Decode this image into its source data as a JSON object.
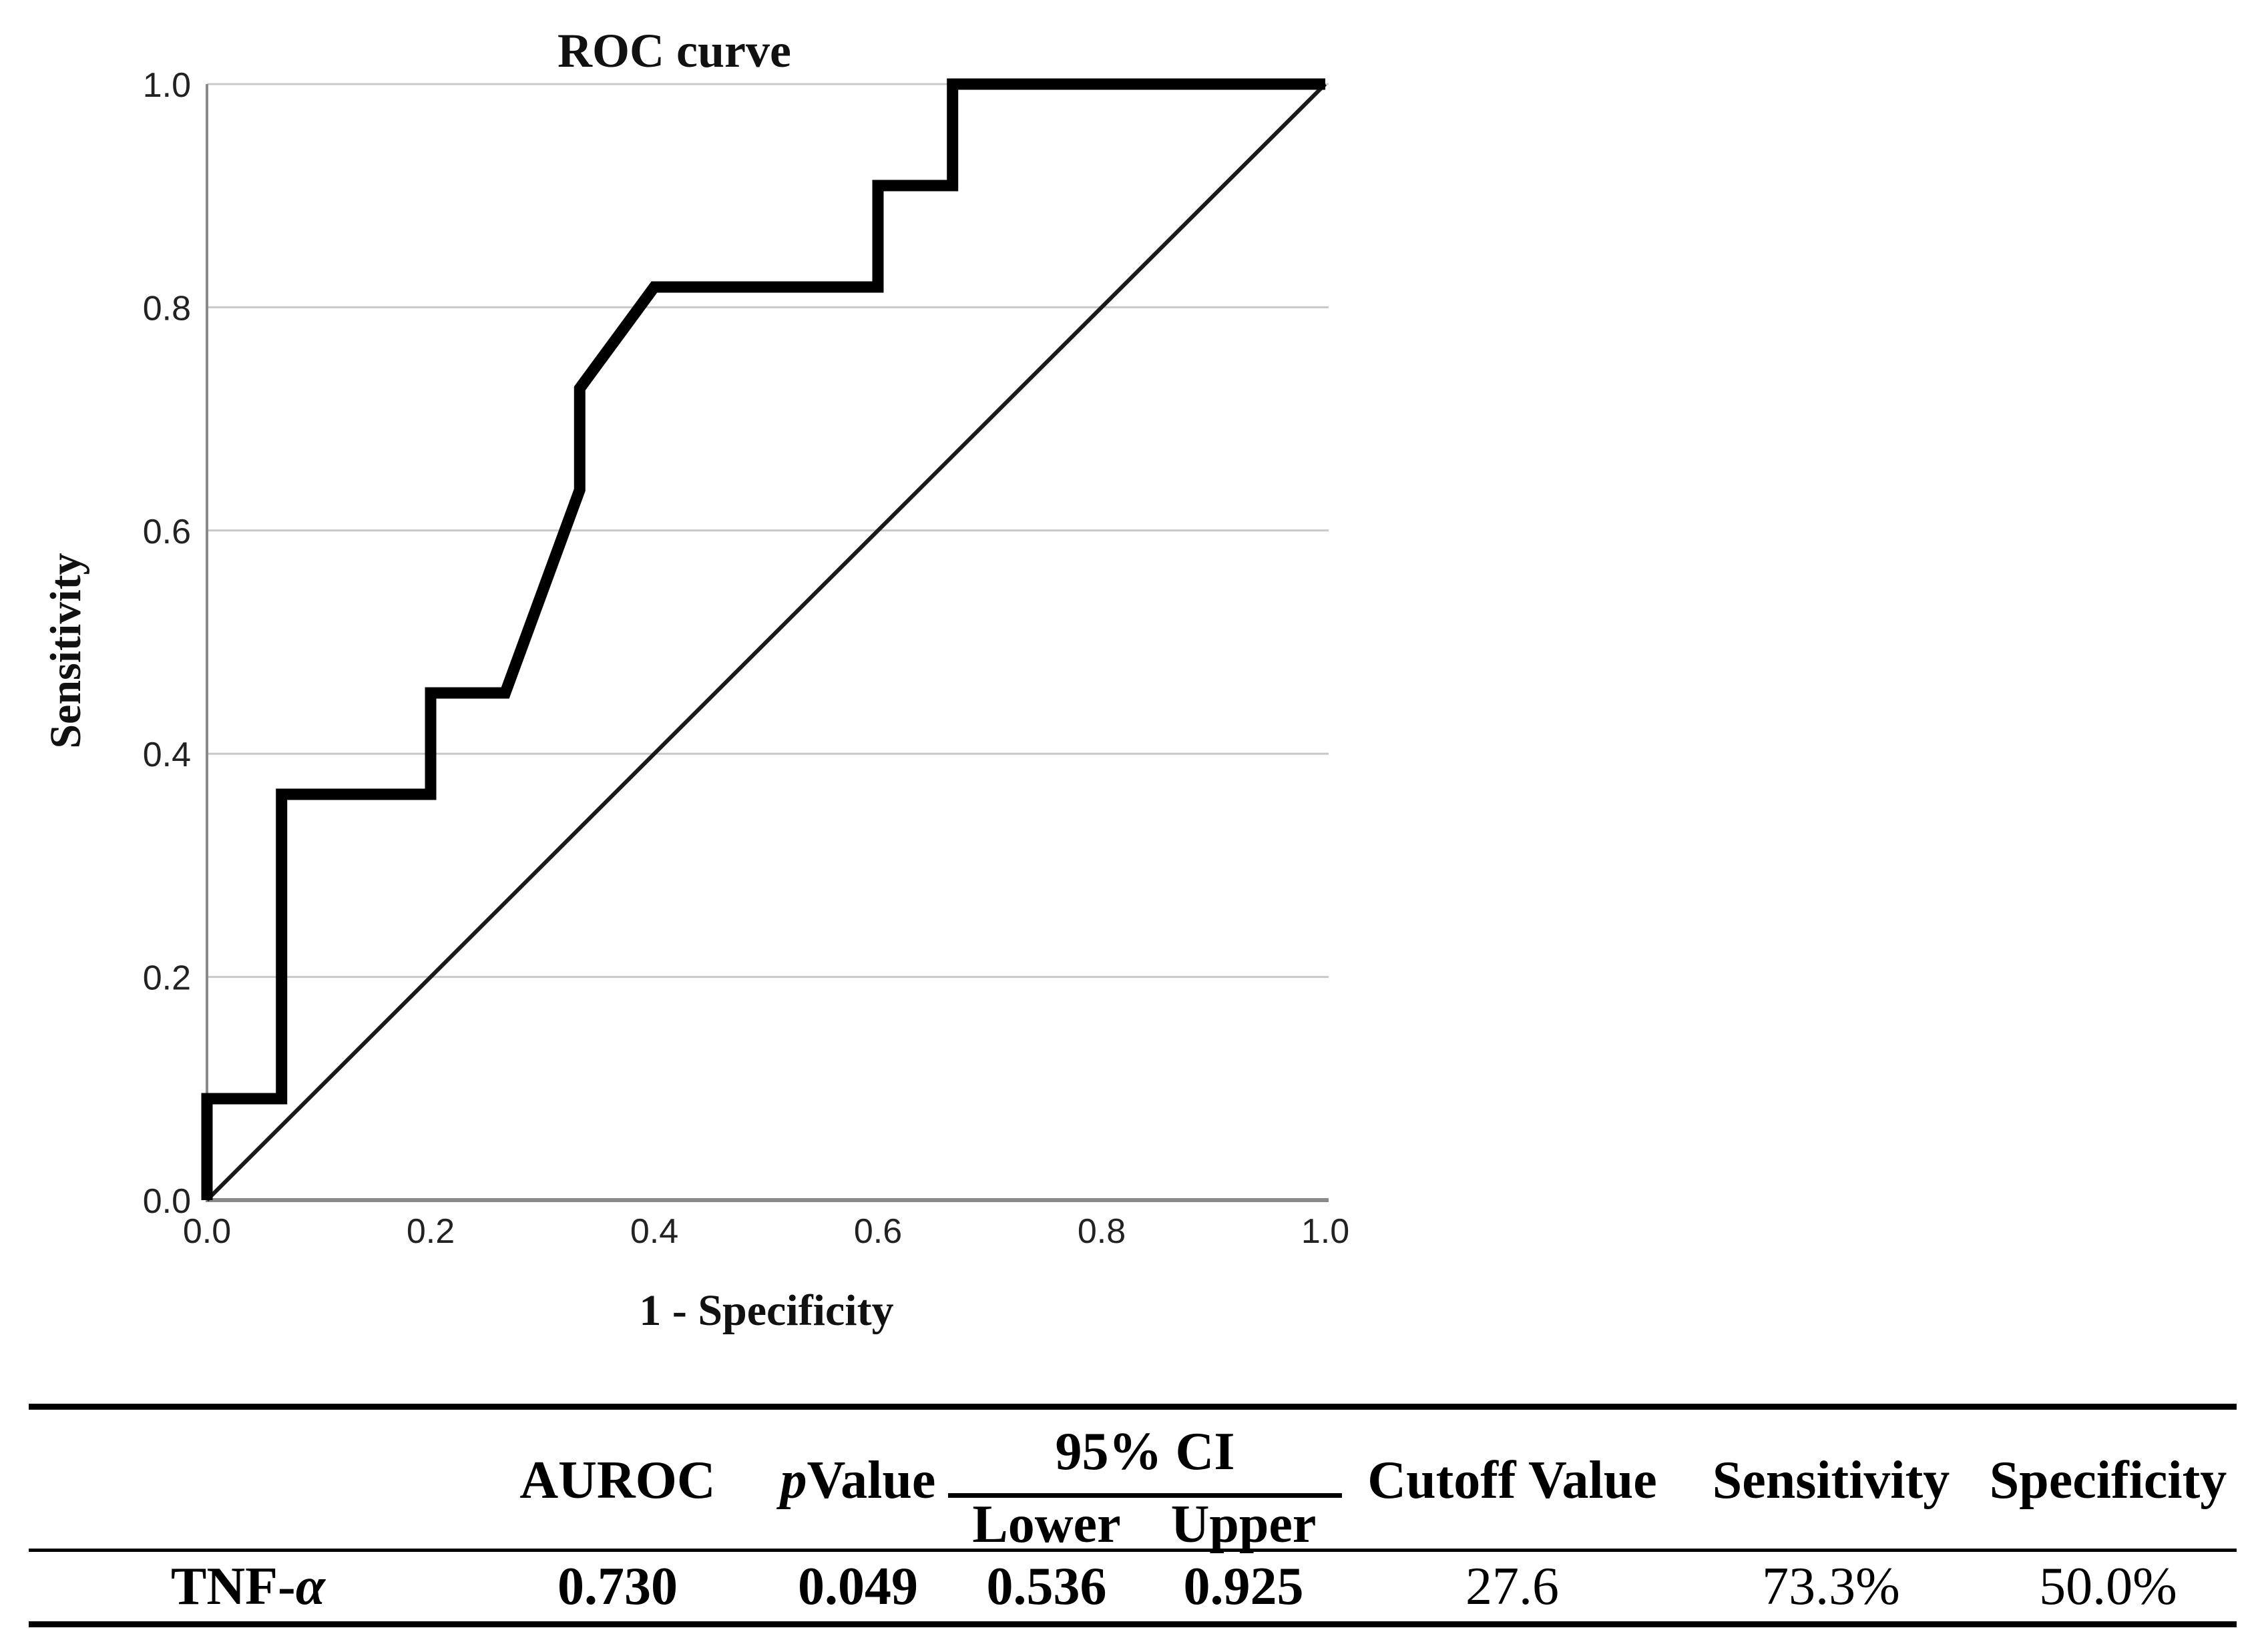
{
  "chart_data": {
    "type": "line",
    "title": "ROC curve",
    "xlabel": "1 - Specificity",
    "ylabel": "Sensitivity",
    "xlim": [
      0,
      1
    ],
    "ylim": [
      0,
      1
    ],
    "x_ticks": [
      "0.0",
      "0.2",
      "0.4",
      "0.6",
      "0.8",
      "1.0"
    ],
    "y_ticks": [
      "0.0",
      "0.2",
      "0.4",
      "0.6",
      "0.8",
      "1.0"
    ],
    "grid": "horizontal",
    "legend": "none",
    "series": [
      {
        "name": "ROC curve (TNF-alpha)",
        "style": "thick black step line",
        "points": [
          [
            0,
            0
          ],
          [
            0,
            0.0909
          ],
          [
            0.0667,
            0.0909
          ],
          [
            0.0667,
            0.3636
          ],
          [
            0.2,
            0.3636
          ],
          [
            0.2,
            0.4545
          ],
          [
            0.2667,
            0.4545
          ],
          [
            0.3333,
            0.6364
          ],
          [
            0.3333,
            0.7273
          ],
          [
            0.4,
            0.8182
          ],
          [
            0.6,
            0.8182
          ],
          [
            0.6,
            0.9091
          ],
          [
            0.6667,
            0.9091
          ],
          [
            0.6667,
            1
          ],
          [
            1,
            1
          ]
        ]
      },
      {
        "name": "reference diagonal",
        "style": "thin black line",
        "points": [
          [
            0,
            0
          ],
          [
            1,
            1
          ]
        ]
      }
    ],
    "colors": {
      "curve": "#000000",
      "reference": "#1a1a1a",
      "gridline": "#c8c8c8",
      "axis": "#8a8a8a"
    }
  },
  "table": {
    "row_header": {
      "prefix": "TNF-",
      "alpha": "α"
    },
    "columns": {
      "auroc": "AUROC",
      "p_value": {
        "italic": "p",
        "rest": " Value"
      },
      "ci_group": "95% CI",
      "ci_lower": "Lower",
      "ci_upper": "Upper",
      "cutoff": "Cutoff Value",
      "sensitivity": "Sensitivity",
      "specificity": "Specificity"
    },
    "values": {
      "auroc": "0.730",
      "p_value": "0.049",
      "ci_lower": "0.536",
      "ci_upper": "0.925",
      "cutoff": "27.6",
      "sensitivity": "73.3%",
      "specificity": "50.0%"
    }
  }
}
